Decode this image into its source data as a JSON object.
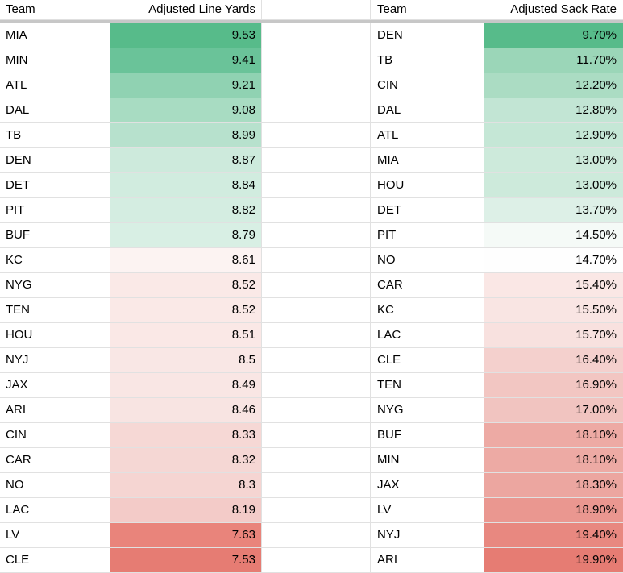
{
  "grid": {
    "gridline_color": "#e1e1e1",
    "freeze_divider_color": "#c7c7c7",
    "text_color": "#000000",
    "scale_green": "#57bb8a",
    "scale_white": "#ffffff",
    "scale_red": "#e67c73"
  },
  "left_table": {
    "headers": {
      "team": "Team",
      "value": "Adjusted Line Yards"
    },
    "rows": [
      {
        "team": "MIA",
        "value": "9.53",
        "color": "#57bb8a"
      },
      {
        "team": "MIN",
        "value": "9.41",
        "color": "#6ac399"
      },
      {
        "team": "ATL",
        "value": "9.21",
        "color": "#90d2b2"
      },
      {
        "team": "DAL",
        "value": "9.08",
        "color": "#a8dcc2"
      },
      {
        "team": "TB",
        "value": "8.99",
        "color": "#b7e1cd"
      },
      {
        "team": "DEN",
        "value": "8.87",
        "color": "#cdeadc"
      },
      {
        "team": "DET",
        "value": "8.84",
        "color": "#d1ecdf"
      },
      {
        "team": "PIT",
        "value": "8.82",
        "color": "#d4ede1"
      },
      {
        "team": "BUF",
        "value": "8.79",
        "color": "#d8efe4"
      },
      {
        "team": "KC",
        "value": "8.61",
        "color": "#fcf3f2"
      },
      {
        "team": "NYG",
        "value": "8.52",
        "color": "#fae9e7"
      },
      {
        "team": "TEN",
        "value": "8.52",
        "color": "#fae9e7"
      },
      {
        "team": "HOU",
        "value": "8.51",
        "color": "#fae8e6"
      },
      {
        "team": "NYJ",
        "value": "8.5",
        "color": "#f9e7e5"
      },
      {
        "team": "JAX",
        "value": "8.49",
        "color": "#f9e6e4"
      },
      {
        "team": "ARI",
        "value": "8.46",
        "color": "#f8e4e2"
      },
      {
        "team": "CIN",
        "value": "8.33",
        "color": "#f6d8d5"
      },
      {
        "team": "CAR",
        "value": "8.32",
        "color": "#f5d7d4"
      },
      {
        "team": "NO",
        "value": "8.3",
        "color": "#f5d5d2"
      },
      {
        "team": "LAC",
        "value": "8.19",
        "color": "#f3cbc8"
      },
      {
        "team": "LV",
        "value": "7.63",
        "color": "#e9847b"
      },
      {
        "team": "CLE",
        "value": "7.53",
        "color": "#e67c73"
      }
    ]
  },
  "right_table": {
    "headers": {
      "team": "Team",
      "value": "Adjusted Sack Rate"
    },
    "rows": [
      {
        "team": "DEN",
        "value": "9.70%",
        "color": "#57bb8a"
      },
      {
        "team": "TB",
        "value": "11.70%",
        "color": "#9bd6b8"
      },
      {
        "team": "CIN",
        "value": "12.20%",
        "color": "#abdcc3"
      },
      {
        "team": "DAL",
        "value": "12.80%",
        "color": "#c2e5d4"
      },
      {
        "team": "ATL",
        "value": "12.90%",
        "color": "#c5e7d6"
      },
      {
        "team": "MIA",
        "value": "13.00%",
        "color": "#cdeadb"
      },
      {
        "team": "HOU",
        "value": "13.00%",
        "color": "#cdeadb"
      },
      {
        "team": "DET",
        "value": "13.70%",
        "color": "#ddf0e7"
      },
      {
        "team": "PIT",
        "value": "14.50%",
        "color": "#f5faf7"
      },
      {
        "team": "NO",
        "value": "14.70%",
        "color": "#fefefe"
      },
      {
        "team": "CAR",
        "value": "15.40%",
        "color": "#fae7e5"
      },
      {
        "team": "KC",
        "value": "15.50%",
        "color": "#f9e5e3"
      },
      {
        "team": "LAC",
        "value": "15.70%",
        "color": "#f8e1df"
      },
      {
        "team": "CLE",
        "value": "16.40%",
        "color": "#f4d0cd"
      },
      {
        "team": "TEN",
        "value": "16.90%",
        "color": "#f2c6c2"
      },
      {
        "team": "NYG",
        "value": "17.00%",
        "color": "#f1c4c0"
      },
      {
        "team": "BUF",
        "value": "18.10%",
        "color": "#edaaa4"
      },
      {
        "team": "MIN",
        "value": "18.10%",
        "color": "#edaaa4"
      },
      {
        "team": "JAX",
        "value": "18.30%",
        "color": "#eca6a0"
      },
      {
        "team": "LV",
        "value": "18.90%",
        "color": "#ea9790"
      },
      {
        "team": "NYJ",
        "value": "19.40%",
        "color": "#e88880"
      },
      {
        "team": "ARI",
        "value": "19.90%",
        "color": "#e67c73"
      }
    ]
  }
}
